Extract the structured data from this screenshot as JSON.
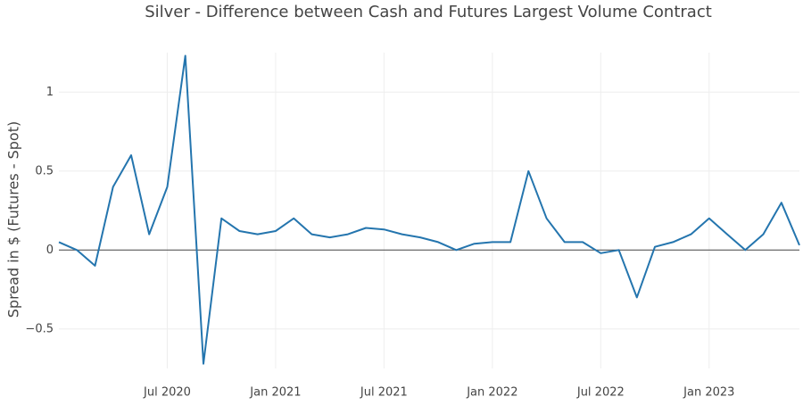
{
  "chart_data": {
    "type": "line",
    "title": "Silver - Difference between Cash and Futures Largest Volume Contract",
    "y_label": "Spread in $ (Futures - Spot)",
    "x": [
      "2020-01",
      "2020-02",
      "2020-03",
      "2020-04",
      "2020-05",
      "2020-06",
      "2020-07",
      "2020-08",
      "2020-09",
      "2020-10",
      "2020-11",
      "2020-12",
      "2021-01",
      "2021-02",
      "2021-03",
      "2021-04",
      "2021-05",
      "2021-06",
      "2021-07",
      "2021-08",
      "2021-09",
      "2021-10",
      "2021-11",
      "2021-12",
      "2022-01",
      "2022-02",
      "2022-03",
      "2022-04",
      "2022-05",
      "2022-06",
      "2022-07",
      "2022-08",
      "2022-09",
      "2022-10",
      "2022-11",
      "2022-12",
      "2023-01",
      "2023-02",
      "2023-03",
      "2023-04",
      "2023-05",
      "2023-06"
    ],
    "values": [
      0.05,
      0.0,
      -0.1,
      0.4,
      0.6,
      0.1,
      0.4,
      1.23,
      -0.72,
      0.2,
      0.12,
      0.1,
      0.12,
      0.2,
      0.1,
      0.08,
      0.1,
      0.14,
      0.13,
      0.1,
      0.08,
      0.05,
      0.0,
      0.04,
      0.05,
      0.05,
      0.5,
      0.2,
      0.05,
      0.05,
      -0.02,
      0.0,
      -0.3,
      0.02,
      0.05,
      0.1,
      0.2,
      0.1,
      0.0,
      0.1,
      0.3,
      0.03
    ],
    "color": "#2475ae",
    "xlim": [
      "2020-01",
      "2023-06"
    ],
    "xticks": [
      {
        "value": "2020-07",
        "label": "Jul 2020"
      },
      {
        "value": "2021-01",
        "label": "Jan 2021"
      },
      {
        "value": "2021-07",
        "label": "Jul 2021"
      },
      {
        "value": "2022-01",
        "label": "Jan 2022"
      },
      {
        "value": "2022-07",
        "label": "Jul 2022"
      },
      {
        "value": "2023-01",
        "label": "Jan 2023"
      }
    ],
    "ylim": [
      -0.75,
      1.25
    ],
    "yticks": [
      {
        "value": -0.5,
        "label": "−0.5"
      },
      0,
      0.5,
      1
    ],
    "grid": true
  }
}
